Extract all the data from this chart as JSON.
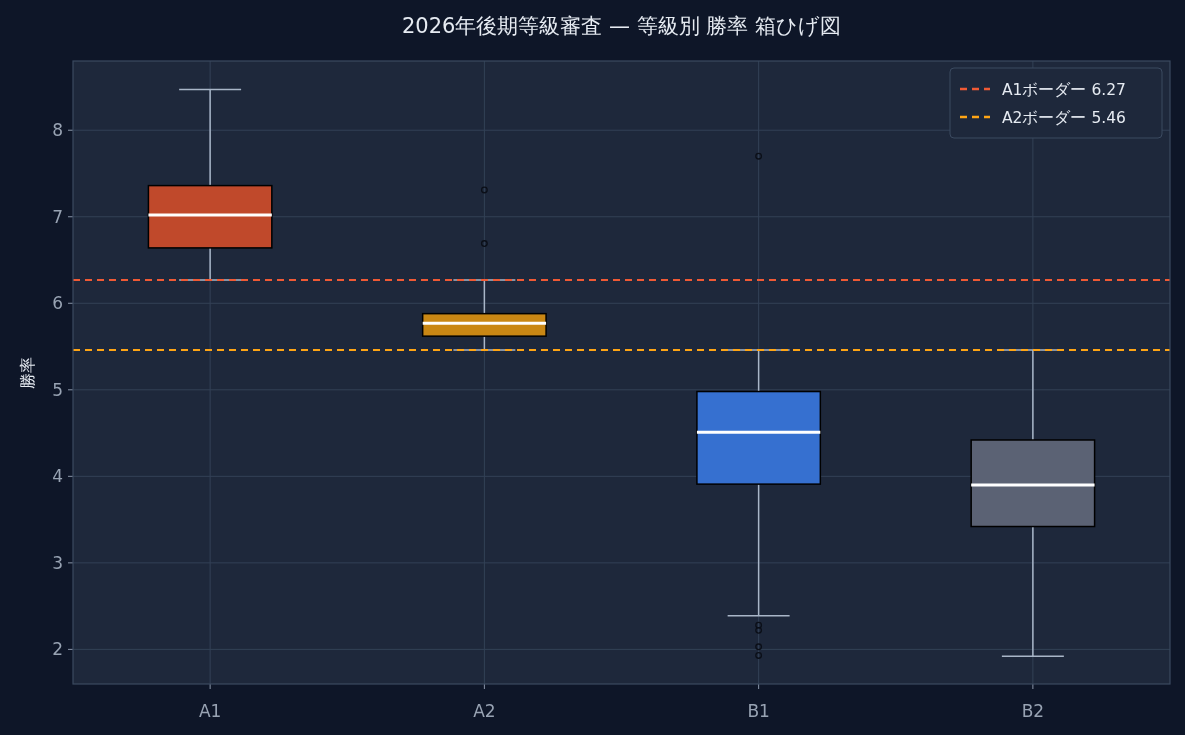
{
  "chart_data": {
    "type": "box",
    "title": "2026年後期等級審査 — 等級別 勝率 箱ひげ図",
    "ylabel": "勝率",
    "categories": [
      "A1",
      "A2",
      "B1",
      "B2"
    ],
    "boxes": [
      {
        "low": 6.27,
        "q1": 6.64,
        "median": 7.02,
        "q3": 7.36,
        "high": 8.47
      },
      {
        "low": 5.46,
        "q1": 5.62,
        "median": 5.77,
        "q3": 5.88,
        "high": 6.27,
        "outliers": [
          7.31,
          6.69
        ]
      },
      {
        "low": 2.39,
        "q1": 3.91,
        "median": 4.51,
        "q3": 4.98,
        "high": 5.46,
        "outliers": [
          7.7,
          2.28,
          2.22,
          2.03,
          1.93
        ]
      },
      {
        "low": 1.92,
        "q1": 3.42,
        "median": 3.9,
        "q3": 4.42,
        "high": 5.46
      }
    ],
    "colors": [
      "#c0492b",
      "#c98714",
      "#3670d0",
      "#5b6274"
    ],
    "ylim": [
      1.6,
      8.8
    ],
    "yticks": [
      2,
      3,
      4,
      5,
      6,
      7,
      8
    ],
    "grid": true,
    "legend": "top right",
    "marker": "circle",
    "ref_lines": [
      {
        "axis": "y",
        "value": 6.27,
        "label": "A1ボーダー 6.27",
        "color": "#f05a35",
        "line_style": "dashed"
      },
      {
        "axis": "y",
        "value": 5.46,
        "label": "A2ボーダー 5.46",
        "color": "#ffa515",
        "line_style": "dashed"
      }
    ]
  }
}
